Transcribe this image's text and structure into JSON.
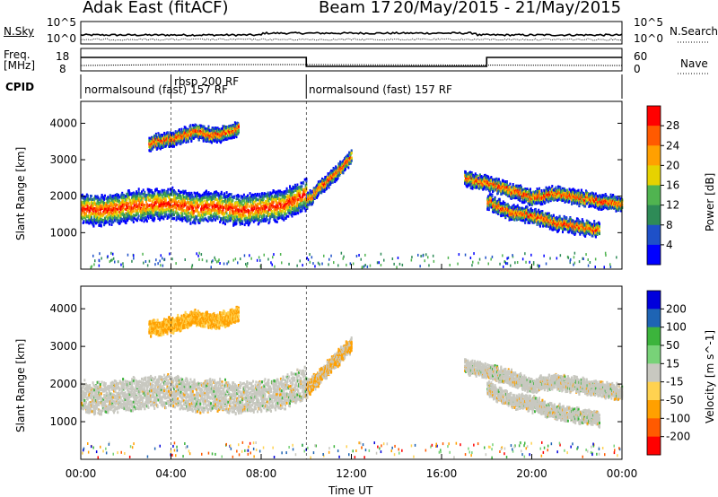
{
  "header": {
    "station": "Adak East (fitACF)",
    "beam": "Beam 17",
    "dates": "20/May/2015 - 21/May/2015"
  },
  "top_panels": {
    "nsky_label": "N.Sky",
    "nsearch_label": "N.Search",
    "nsky_ticks": [
      "10^5",
      "10^0"
    ],
    "nsearch_ticks": [
      "10^5",
      "10^0"
    ],
    "freq_label_line1": "Freq.",
    "freq_label_line2": "[MHz]",
    "freq_ticks": [
      "18",
      "8"
    ],
    "nave_label": "Nave",
    "nave_ticks": [
      "60",
      "0"
    ],
    "cpid_label": "CPID",
    "cpid_segments": [
      {
        "label": "normalsound (fast) 157 RF",
        "start_hour": 0.0,
        "end_hour": 4.0
      },
      {
        "label": "rbsp 200 RF",
        "start_hour": 4.0,
        "end_hour": 10.0
      },
      {
        "label": "normalsound (fast) 157 RF",
        "start_hour": 10.0,
        "end_hour": 24.0
      }
    ]
  },
  "chart_data": [
    {
      "type": "heatmap",
      "name": "power-panel",
      "xlabel": "",
      "ylabel": "Slant Range [km]",
      "x_range_hours": [
        0,
        24
      ],
      "ylim": [
        0,
        4600
      ],
      "y_ticks": [
        1000,
        2000,
        3000,
        4000
      ],
      "colorbar": {
        "label": "Power [dB]",
        "ticks": [
          "28",
          "24",
          "20",
          "16",
          "12",
          "8",
          "4"
        ],
        "colors": [
          "#ff0000",
          "#ff5a00",
          "#ffa000",
          "#e6d200",
          "#50b450",
          "#2e8b57",
          "#1e50c8",
          "#0000ff"
        ]
      },
      "traces": [
        {
          "hours": [
            0,
            1,
            2,
            3,
            4,
            5,
            6,
            7,
            8,
            9,
            10
          ],
          "range_km": [
            1700,
            1650,
            1750,
            1800,
            1850,
            1700,
            1750,
            1650,
            1700,
            1800,
            2100
          ],
          "band": "F-region"
        },
        {
          "hours": [
            3,
            4,
            5,
            6,
            7
          ],
          "range_km": [
            3500,
            3600,
            3800,
            3700,
            3900
          ],
          "band": "far"
        },
        {
          "hours": [
            10,
            11,
            12
          ],
          "range_km": [
            1900,
            2500,
            3100
          ],
          "band": "rising"
        },
        {
          "hours": [
            17,
            18,
            19,
            20,
            21,
            22,
            23,
            24
          ],
          "range_km": [
            2500,
            2400,
            2200,
            2000,
            2100,
            2000,
            1900,
            1800
          ],
          "band": "late"
        },
        {
          "hours": [
            18,
            19,
            20,
            21,
            22,
            23
          ],
          "range_km": [
            1900,
            1600,
            1500,
            1300,
            1200,
            1100
          ],
          "band": "late-lower"
        }
      ]
    },
    {
      "type": "heatmap",
      "name": "velocity-panel",
      "xlabel": "Time UT",
      "ylabel": "Slant Range [km]",
      "x_ticks": [
        "00:00",
        "04:00",
        "08:00",
        "12:00",
        "16:00",
        "20:00",
        "00:00"
      ],
      "x_range_hours": [
        0,
        24
      ],
      "ylim": [
        0,
        4600
      ],
      "y_ticks": [
        1000,
        2000,
        3000,
        4000
      ],
      "colorbar": {
        "label": "Velocity [m s^-1]",
        "ticks": [
          "200",
          "100",
          "50",
          "15",
          "-15",
          "-50",
          "-100",
          "-200"
        ],
        "colors": [
          "#0000dc",
          "#1e64b4",
          "#3cb43c",
          "#78d278",
          "#c8c8c0",
          "#ffd250",
          "#ffa000",
          "#ff5a00",
          "#ff0000"
        ]
      }
    }
  ],
  "colors": {
    "ground_scatter": "#c8c8c0",
    "axis": "#000000"
  }
}
